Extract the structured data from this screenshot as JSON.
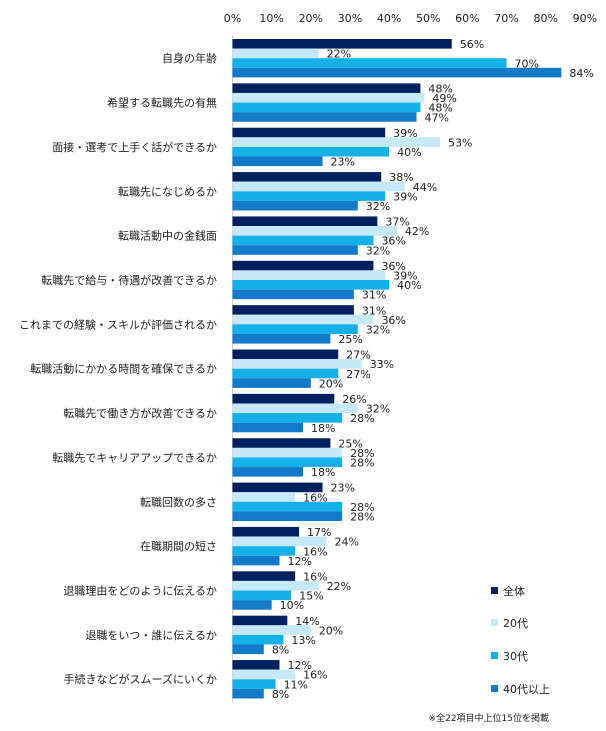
{
  "chart_data": {
    "type": "bar",
    "orientation": "horizontal",
    "title": "",
    "xlabel": "",
    "ylabel": "",
    "xlim": [
      0,
      90
    ],
    "x_ticks": [
      "0%",
      "10%",
      "20%",
      "30%",
      "40%",
      "50%",
      "60%",
      "70%",
      "80%",
      "90%"
    ],
    "x_tick_values": [
      0,
      10,
      20,
      30,
      40,
      50,
      60,
      70,
      80,
      90
    ],
    "tick_position": "top",
    "grid": false,
    "categories": [
      "自身の年齢",
      "希望する転職先の有無",
      "面接・選考で上手く話ができるか",
      "転職先になじめるか",
      "転職活動中の金銭面",
      "転職先で給与・待遇が改善できるか",
      "これまでの経験・スキルが評価されるか",
      "転職活動にかかる時間を確保できるか",
      "転職先で働き方が改善できるか",
      "転職先でキャリアアップできるか",
      "転職回数の多さ",
      "在職期間の短さ",
      "退職理由をどのように伝えるか",
      "退職をいつ・誰に伝えるか",
      "手続きなどがスムーズにいくか"
    ],
    "series": [
      {
        "name": "全体",
        "color": "#002060",
        "values": [
          56,
          48,
          39,
          38,
          37,
          36,
          31,
          27,
          26,
          25,
          23,
          17,
          16,
          14,
          12
        ]
      },
      {
        "name": "20代",
        "color": "#C5E9F9",
        "values": [
          22,
          49,
          53,
          44,
          42,
          39,
          36,
          33,
          32,
          28,
          16,
          24,
          22,
          20,
          16
        ]
      },
      {
        "name": "30代",
        "color": "#16B0E9",
        "values": [
          70,
          48,
          40,
          39,
          36,
          40,
          32,
          27,
          28,
          28,
          28,
          16,
          15,
          13,
          11
        ]
      },
      {
        "name": "40代以上",
        "color": "#1379C9",
        "values": [
          84,
          47,
          23,
          32,
          32,
          31,
          25,
          20,
          18,
          18,
          28,
          12,
          10,
          8,
          8
        ]
      }
    ],
    "value_suffix": "%",
    "legend_position": "bottom-right",
    "annotations": [
      "※全22項目中上位15位を掲載"
    ]
  }
}
